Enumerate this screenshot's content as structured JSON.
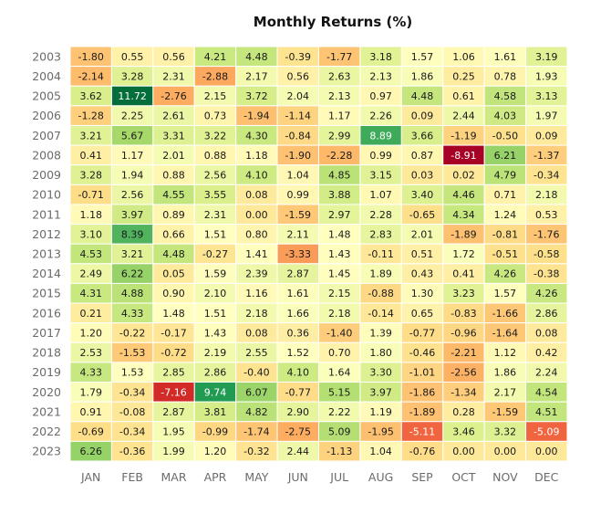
{
  "chart_data": {
    "type": "heatmap",
    "title": "Monthly Returns (%)",
    "xlabel": "",
    "ylabel": "",
    "months": [
      "JAN",
      "FEB",
      "MAR",
      "APR",
      "MAY",
      "JUN",
      "JUL",
      "AUG",
      "SEP",
      "OCT",
      "NOV",
      "DEC"
    ],
    "years": [
      "2003",
      "2004",
      "2005",
      "2006",
      "2007",
      "2008",
      "2009",
      "2010",
      "2011",
      "2012",
      "2013",
      "2014",
      "2015",
      "2016",
      "2017",
      "2018",
      "2019",
      "2020",
      "2021",
      "2022",
      "2023"
    ],
    "values": [
      [
        "-1.80",
        "0.55",
        "0.56",
        "4.21",
        "4.48",
        "-0.39",
        "-1.77",
        "3.18",
        "1.57",
        "1.06",
        "1.61",
        "3.19"
      ],
      [
        "-2.14",
        "3.28",
        "2.31",
        "-2.88",
        "2.17",
        "0.56",
        "2.63",
        "2.13",
        "1.86",
        "0.25",
        "0.78",
        "1.93"
      ],
      [
        "3.62",
        "11.72",
        "-2.76",
        "2.15",
        "3.72",
        "2.04",
        "2.13",
        "0.97",
        "4.48",
        "0.61",
        "4.58",
        "3.13"
      ],
      [
        "-1.28",
        "2.25",
        "2.61",
        "0.73",
        "-1.94",
        "-1.14",
        "1.17",
        "2.26",
        "0.09",
        "2.44",
        "4.03",
        "1.97"
      ],
      [
        "3.21",
        "5.67",
        "3.31",
        "3.22",
        "4.30",
        "-0.84",
        "2.99",
        "8.89",
        "3.66",
        "-1.19",
        "-0.50",
        "0.09"
      ],
      [
        "0.41",
        "1.17",
        "2.01",
        "0.88",
        "1.18",
        "-1.90",
        "-2.28",
        "0.99",
        "0.87",
        "-8.91",
        "6.21",
        "-1.37"
      ],
      [
        "3.28",
        "1.94",
        "0.88",
        "2.56",
        "4.10",
        "1.04",
        "4.85",
        "3.15",
        "0.03",
        "0.02",
        "4.79",
        "-0.34"
      ],
      [
        "-0.71",
        "2.56",
        "4.55",
        "3.55",
        "0.08",
        "0.99",
        "3.88",
        "1.07",
        "3.40",
        "4.46",
        "0.71",
        "2.18"
      ],
      [
        "1.18",
        "3.97",
        "0.89",
        "2.31",
        "0.00",
        "-1.59",
        "2.97",
        "2.28",
        "-0.65",
        "4.34",
        "1.24",
        "0.53"
      ],
      [
        "3.10",
        "8.39",
        "0.66",
        "1.51",
        "0.80",
        "2.11",
        "1.48",
        "2.83",
        "2.01",
        "-1.89",
        "-0.81",
        "-1.76"
      ],
      [
        "4.53",
        "3.21",
        "4.48",
        "-0.27",
        "1.41",
        "-3.33",
        "1.43",
        "-0.11",
        "0.51",
        "1.72",
        "-0.51",
        "-0.58"
      ],
      [
        "2.49",
        "6.22",
        "0.05",
        "1.59",
        "2.39",
        "2.87",
        "1.45",
        "1.89",
        "0.43",
        "0.41",
        "4.26",
        "-0.38"
      ],
      [
        "4.31",
        "4.88",
        "0.90",
        "2.10",
        "1.16",
        "1.61",
        "2.15",
        "-0.88",
        "1.30",
        "3.23",
        "1.57",
        "4.26"
      ],
      [
        "0.21",
        "4.33",
        "1.48",
        "1.51",
        "2.18",
        "1.66",
        "2.18",
        "-0.14",
        "0.65",
        "-0.83",
        "-1.66",
        "2.86"
      ],
      [
        "1.20",
        "-0.22",
        "-0.17",
        "1.43",
        "0.08",
        "0.36",
        "-1.40",
        "1.39",
        "-0.77",
        "-0.96",
        "-1.64",
        "0.08"
      ],
      [
        "2.53",
        "-1.53",
        "-0.72",
        "2.19",
        "2.55",
        "1.52",
        "0.70",
        "1.80",
        "-0.46",
        "-2.21",
        "1.12",
        "0.42"
      ],
      [
        "4.33",
        "1.53",
        "2.85",
        "2.86",
        "-0.40",
        "4.10",
        "1.64",
        "3.30",
        "-1.01",
        "-2.56",
        "1.86",
        "2.24"
      ],
      [
        "1.79",
        "-0.34",
        "-7.16",
        "9.74",
        "6.07",
        "-0.77",
        "5.15",
        "3.97",
        "-1.86",
        "-1.34",
        "2.17",
        "4.54"
      ],
      [
        "0.91",
        "-0.08",
        "2.87",
        "3.81",
        "4.82",
        "2.90",
        "2.22",
        "1.19",
        "-1.89",
        "0.28",
        "-1.59",
        "4.51"
      ],
      [
        "-0.69",
        "-0.34",
        "1.95",
        "-0.99",
        "-1.74",
        "-2.75",
        "5.09",
        "-1.95",
        "-5.11",
        "3.46",
        "3.32",
        "-5.09"
      ],
      [
        "6.26",
        "-0.36",
        "1.99",
        "1.20",
        "-0.32",
        "2.44",
        "-1.13",
        "1.04",
        "-0.76",
        "0.00",
        "0.00",
        "0.00"
      ]
    ],
    "colormap": "RdYlGn",
    "color_range": [
      -9,
      12
    ],
    "grid": false,
    "legend": "none"
  }
}
